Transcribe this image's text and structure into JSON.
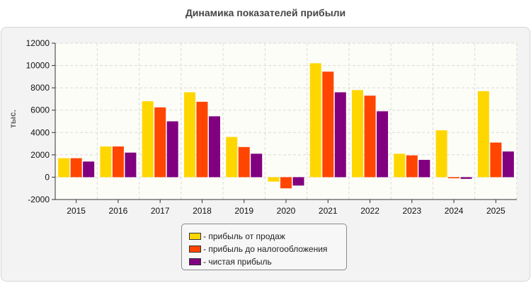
{
  "chart_data": {
    "type": "bar",
    "title": "Динамика показателей прибыли",
    "xlabel": "",
    "ylabel": "тыс.",
    "ylim": [
      -2000,
      12000
    ],
    "yticks": [
      -2000,
      0,
      2000,
      4000,
      6000,
      8000,
      10000,
      12000
    ],
    "grid": true,
    "legend_position": "bottom",
    "categories": [
      "2015",
      "2016",
      "2017",
      "2018",
      "2019",
      "2020",
      "2021",
      "2022",
      "2023",
      "2024",
      "2025"
    ],
    "series": [
      {
        "name": "- прибыль от продаж",
        "color": "#ffd700",
        "values": [
          1700,
          2750,
          6800,
          7600,
          3600,
          -400,
          10200,
          7800,
          2100,
          4200,
          7700
        ]
      },
      {
        "name": "- прибыль до налогообложения",
        "color": "#ff4500",
        "values": [
          1700,
          2750,
          6250,
          6750,
          2700,
          -1000,
          9450,
          7300,
          1950,
          -100,
          3100
        ]
      },
      {
        "name": "- чистая прибыль",
        "color": "#800080",
        "values": [
          1400,
          2200,
          5000,
          5450,
          2100,
          -750,
          7600,
          5900,
          1550,
          -150,
          2300
        ]
      }
    ]
  }
}
